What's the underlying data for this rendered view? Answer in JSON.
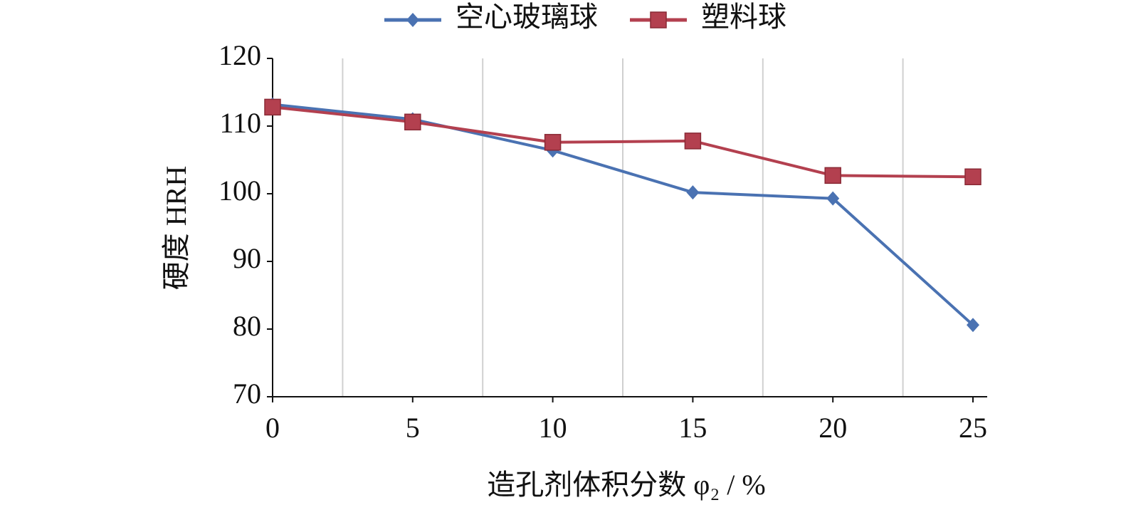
{
  "chart_data": {
    "type": "line",
    "x_label": "造孔剂体积分数 φ₂ / %",
    "y_label": "硬度 HRH",
    "x": [
      0,
      5,
      10,
      15,
      20,
      25
    ],
    "series": [
      {
        "name": "空心玻璃球",
        "color": "#4a72b2",
        "marker": "diamond",
        "values": [
          113.2,
          111,
          106.4,
          100.2,
          99.3,
          80.6
        ]
      },
      {
        "name": "塑料球",
        "color": "#b3404f",
        "marker": "square",
        "values": [
          112.8,
          110.6,
          107.6,
          107.8,
          102.7,
          102.5
        ]
      }
    ],
    "xlim": [
      0,
      25
    ],
    "xticks": [
      0,
      5,
      10,
      15,
      20,
      25
    ],
    "ylim": [
      70,
      120
    ],
    "yticks": [
      70,
      80,
      90,
      100,
      110,
      120
    ],
    "xgrid": [
      2.5,
      7.5,
      12.5,
      17.5,
      22.5
    ],
    "legend": "top"
  }
}
